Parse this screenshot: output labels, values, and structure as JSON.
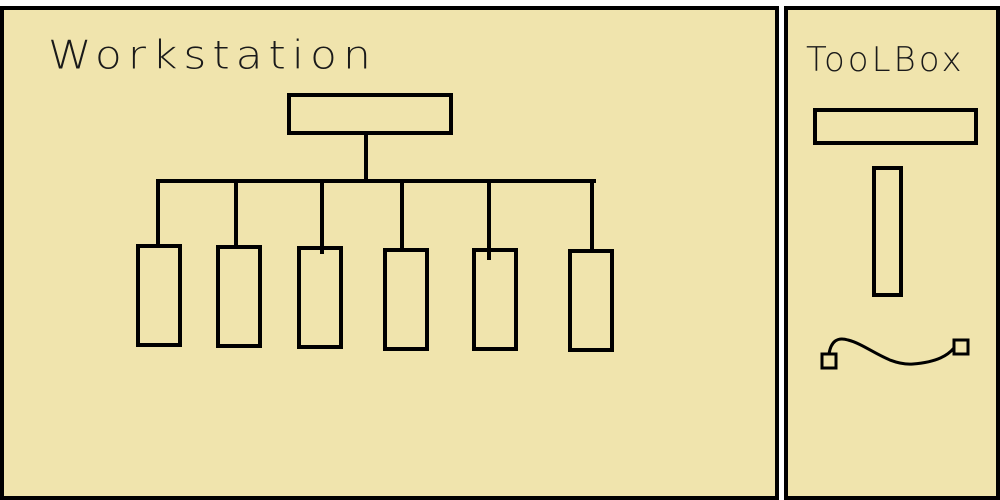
{
  "workstation": {
    "title": "Workstation"
  },
  "toolbox": {
    "title": "TooLBox",
    "tools": [
      {
        "icon": "horizontal-rectangle-icon"
      },
      {
        "icon": "vertical-rectangle-icon"
      },
      {
        "icon": "connector-curve-icon"
      }
    ]
  },
  "diagram": {
    "root_nodes": 1,
    "child_nodes": 6
  },
  "colors": {
    "panel_background": "#f0e4ad",
    "stroke": "#000000"
  }
}
